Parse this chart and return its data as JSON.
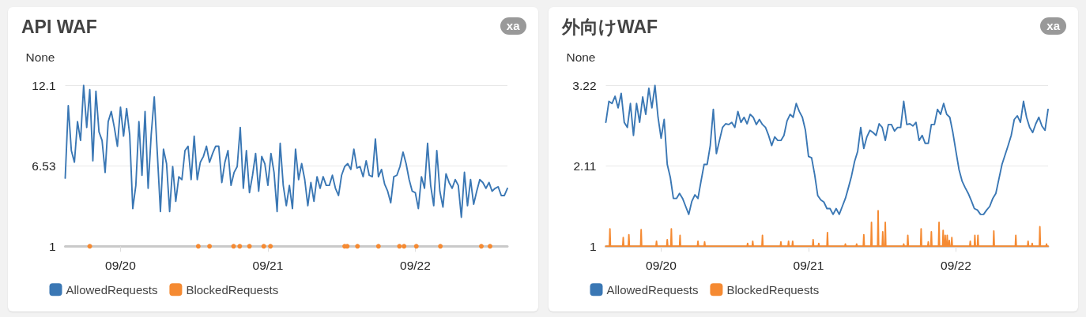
{
  "chart_data": [
    {
      "type": "line",
      "title": "API WAF",
      "ylabel": "None",
      "annotations": [
        "xa"
      ],
      "x": [
        "--09-19T15:00",
        "--09-19T15:30",
        "--09-19T16:00",
        "--09-19T16:30",
        "--09-19T17:00",
        "--09-19T17:30",
        "--09-19T18:00",
        "--09-19T18:30",
        "--09-19T19:00",
        "--09-19T19:30",
        "--09-19T20:00",
        "--09-19T20:30",
        "--09-19T21:00",
        "--09-19T21:30",
        "--09-19T22:00",
        "--09-19T22:30",
        "--09-19T23:00",
        "--09-19T23:30",
        "--09-20T00:00",
        "--09-20T00:30",
        "--09-20T01:00",
        "--09-20T01:30",
        "--09-20T02:00",
        "--09-20T02:30",
        "--09-20T03:00",
        "--09-20T03:30",
        "--09-20T04:00",
        "--09-20T04:30",
        "--09-20T05:00",
        "--09-20T05:30",
        "--09-20T06:00",
        "--09-20T06:30",
        "--09-20T07:00",
        "--09-20T07:30",
        "--09-20T08:00",
        "--09-20T08:30",
        "--09-20T09:00",
        "--09-20T09:30",
        "--09-20T10:00",
        "--09-20T10:30",
        "--09-20T11:00",
        "--09-20T11:30",
        "--09-20T12:00",
        "--09-20T12:30",
        "--09-20T13:00",
        "--09-20T13:30",
        "--09-20T14:00",
        "--09-20T14:30",
        "--09-20T15:00",
        "--09-20T15:30",
        "--09-20T16:00",
        "--09-20T16:30",
        "--09-20T17:00",
        "--09-20T17:30",
        "--09-20T18:00",
        "--09-20T18:30",
        "--09-20T19:00",
        "--09-20T19:30",
        "--09-20T20:00",
        "--09-20T20:30",
        "--09-20T21:00",
        "--09-20T21:30",
        "--09-20T22:00",
        "--09-20T22:30",
        "--09-20T23:00",
        "--09-20T23:30",
        "--09-21T00:00",
        "--09-21T00:30",
        "--09-21T01:00",
        "--09-21T01:30",
        "--09-21T02:00",
        "--09-21T02:30",
        "--09-21T03:00",
        "--09-21T03:30",
        "--09-21T04:00",
        "--09-21T04:30",
        "--09-21T05:00",
        "--09-21T05:30",
        "--09-21T06:00",
        "--09-21T06:30",
        "--09-21T07:00",
        "--09-21T07:30",
        "--09-21T08:00",
        "--09-21T08:30",
        "--09-21T09:00",
        "--09-21T09:30",
        "--09-21T10:00",
        "--09-21T10:30",
        "--09-21T11:00",
        "--09-21T11:30",
        "--09-21T12:00",
        "--09-21T12:30",
        "--09-21T13:00",
        "--09-21T13:30",
        "--09-21T14:00",
        "--09-21T14:30",
        "--09-21T15:00",
        "--09-21T15:30",
        "--09-21T16:00",
        "--09-21T16:30",
        "--09-21T17:00",
        "--09-21T17:30",
        "--09-21T18:00",
        "--09-21T18:30",
        "--09-21T19:00",
        "--09-21T19:30",
        "--09-21T20:00",
        "--09-21T20:30",
        "--09-21T21:00",
        "--09-21T21:30",
        "--09-21T22:00",
        "--09-21T22:30",
        "--09-21T23:00",
        "--09-21T23:30",
        "--09-22T00:00",
        "--09-22T00:30",
        "--09-22T01:00",
        "--09-22T01:30",
        "--09-22T02:00",
        "--09-22T02:30",
        "--09-22T03:00",
        "--09-22T03:30",
        "--09-22T04:00",
        "--09-22T04:30",
        "--09-22T05:00",
        "--09-22T05:30",
        "--09-22T06:00",
        "--09-22T06:30",
        "--09-22T07:00",
        "--09-22T07:30",
        "--09-22T08:00",
        "--09-22T08:30",
        "--09-22T09:00",
        "--09-22T09:30",
        "--09-22T10:00",
        "--09-22T10:30",
        "--09-22T11:00",
        "--09-22T11:30",
        "--09-22T12:00",
        "--09-22T12:30",
        "--09-22T13:00",
        "--09-22T13:30",
        "--09-22T14:00",
        "--09-22T14:30",
        "--09-22T15:00"
      ],
      "xlim": [
        "--09-19T15:00",
        "--09-22T15:00"
      ],
      "xticks": [
        {
          "value": "--09-20",
          "label": "09/20"
        },
        {
          "value": "--09-21",
          "label": "09/21"
        },
        {
          "value": "--09-22",
          "label": "09/22"
        }
      ],
      "ylim": [
        1,
        12.1
      ],
      "yticks": [
        1,
        6.53,
        12.1
      ],
      "grid": "y",
      "legend": "bottom left",
      "series": [
        {
          "name": "AllowedRequests",
          "color": "#3a77b4",
          "values": [
            5.7,
            10.7,
            7.6,
            6.8,
            9.6,
            8.3,
            12.1,
            9.2,
            11.8,
            6.9,
            11.7,
            8.9,
            8.3,
            6.1,
            9.6,
            10.3,
            9.2,
            7.9,
            10.6,
            8.6,
            10.5,
            8.7,
            3.6,
            5.2,
            9.6,
            5.9,
            10.3,
            5.0,
            8.7,
            11.3,
            7.4,
            3.4,
            7.7,
            6.7,
            3.4,
            6.5,
            4.1,
            5.8,
            5.6,
            7.6,
            7.9,
            5.6,
            8.6,
            5.6,
            6.8,
            7.2,
            7.9,
            6.8,
            7.4,
            7.9,
            7.9,
            5.4,
            6.8,
            7.6,
            5.2,
            6.1,
            6.5,
            9.2,
            5.0,
            7.6,
            4.7,
            5.9,
            7.4,
            4.8,
            7.2,
            6.7,
            5.2,
            7.4,
            6.1,
            3.4,
            8.1,
            5.2,
            3.8,
            5.2,
            3.6,
            7.7,
            5.6,
            6.7,
            5.6,
            3.8,
            5.4,
            4.1,
            5.8,
            5.0,
            5.8,
            5.2,
            5.2,
            5.9,
            5.0,
            4.5,
            5.9,
            6.5,
            6.7,
            6.3,
            7.7,
            6.4,
            6.5,
            5.8,
            6.9,
            5.9,
            5.8,
            8.4,
            5.8,
            6.3,
            5.3,
            4.8,
            4.0,
            5.8,
            5.9,
            6.5,
            7.5,
            6.7,
            5.6,
            4.8,
            4.7,
            3.6,
            5.8,
            5.0,
            8.1,
            5.2,
            3.8,
            7.6,
            4.8,
            3.7,
            6.0,
            5.4,
            5.0,
            5.6,
            5.2,
            3.0,
            6.1,
            3.8,
            5.6,
            3.9,
            4.8,
            5.6,
            5.4,
            5.0,
            5.4,
            4.8,
            5.0,
            5.1,
            4.5,
            4.5,
            5.0
          ]
        },
        {
          "name": "BlockedRequests",
          "type": "scatter",
          "marker": "circle",
          "color": "#f58a32",
          "x": [
            "--09-19T19:00",
            "--09-20T12:40",
            "--09-20T14:30",
            "--09-20T18:25",
            "--09-20T19:25",
            "--09-20T21:00",
            "--09-20T23:20",
            "--09-21T00:25",
            "--09-21T12:30",
            "--09-21T12:55",
            "--09-21T14:35",
            "--09-21T18:00",
            "--09-21T21:25",
            "--09-21T22:10",
            "--09-22T00:10",
            "--09-22T04:05",
            "--09-22T10:45",
            "--09-22T12:10"
          ],
          "values": [
            1,
            1,
            1,
            1,
            1,
            1,
            1,
            1,
            1,
            1,
            1,
            1,
            1,
            1,
            1,
            1,
            1,
            1
          ]
        }
      ]
    },
    {
      "type": "line",
      "title": "外向けWAF",
      "ylabel": "None",
      "annotations": [
        "xa"
      ],
      "x": [
        "--09-19T15:00",
        "--09-19T15:30",
        "--09-19T16:00",
        "--09-19T16:30",
        "--09-19T17:00",
        "--09-19T17:30",
        "--09-19T18:00",
        "--09-19T18:30",
        "--09-19T19:00",
        "--09-19T19:30",
        "--09-19T20:00",
        "--09-19T20:30",
        "--09-19T21:00",
        "--09-19T21:30",
        "--09-19T22:00",
        "--09-19T22:30",
        "--09-19T23:00",
        "--09-19T23:30",
        "--09-20T00:00",
        "--09-20T00:30",
        "--09-20T01:00",
        "--09-20T01:30",
        "--09-20T02:00",
        "--09-20T02:30",
        "--09-20T03:00",
        "--09-20T03:30",
        "--09-20T04:00",
        "--09-20T04:30",
        "--09-20T05:00",
        "--09-20T05:30",
        "--09-20T06:00",
        "--09-20T06:30",
        "--09-20T07:00",
        "--09-20T07:30",
        "--09-20T08:00",
        "--09-20T08:30",
        "--09-20T09:00",
        "--09-20T09:30",
        "--09-20T10:00",
        "--09-20T10:30",
        "--09-20T11:00",
        "--09-20T11:30",
        "--09-20T12:00",
        "--09-20T12:30",
        "--09-20T13:00",
        "--09-20T13:30",
        "--09-20T14:00",
        "--09-20T14:30",
        "--09-20T15:00",
        "--09-20T15:30",
        "--09-20T16:00",
        "--09-20T16:30",
        "--09-20T17:00",
        "--09-20T17:30",
        "--09-20T18:00",
        "--09-20T18:30",
        "--09-20T19:00",
        "--09-20T19:30",
        "--09-20T20:00",
        "--09-20T20:30",
        "--09-20T21:00",
        "--09-20T21:30",
        "--09-20T22:00",
        "--09-20T22:30",
        "--09-20T23:00",
        "--09-20T23:30",
        "--09-21T00:00",
        "--09-21T00:30",
        "--09-21T01:00",
        "--09-21T01:30",
        "--09-21T02:00",
        "--09-21T02:30",
        "--09-21T03:00",
        "--09-21T03:30",
        "--09-21T04:00",
        "--09-21T04:30",
        "--09-21T05:00",
        "--09-21T05:30",
        "--09-21T06:00",
        "--09-21T06:30",
        "--09-21T07:00",
        "--09-21T07:30",
        "--09-21T08:00",
        "--09-21T08:30",
        "--09-21T09:00",
        "--09-21T09:30",
        "--09-21T10:00",
        "--09-21T10:30",
        "--09-21T11:00",
        "--09-21T11:30",
        "--09-21T12:00",
        "--09-21T12:30",
        "--09-21T13:00",
        "--09-21T13:30",
        "--09-21T14:00",
        "--09-21T14:30",
        "--09-21T15:00",
        "--09-21T15:30",
        "--09-21T16:00",
        "--09-21T16:30",
        "--09-21T17:00",
        "--09-21T17:30",
        "--09-21T18:00",
        "--09-21T18:30",
        "--09-21T19:00",
        "--09-21T19:30",
        "--09-21T20:00",
        "--09-21T20:30",
        "--09-21T21:00",
        "--09-21T21:30",
        "--09-21T22:00",
        "--09-21T22:30",
        "--09-21T23:00",
        "--09-21T23:30",
        "--09-22T00:00",
        "--09-22T00:30",
        "--09-22T01:00",
        "--09-22T01:30",
        "--09-22T02:00",
        "--09-22T02:30",
        "--09-22T03:00",
        "--09-22T03:30",
        "--09-22T04:00",
        "--09-22T04:30",
        "--09-22T05:00",
        "--09-22T05:30",
        "--09-22T06:00",
        "--09-22T06:30",
        "--09-22T07:00",
        "--09-22T07:30",
        "--09-22T08:00",
        "--09-22T08:30",
        "--09-22T09:00",
        "--09-22T09:30",
        "--09-22T10:00",
        "--09-22T10:30",
        "--09-22T11:00",
        "--09-22T11:30",
        "--09-22T12:00",
        "--09-22T12:30",
        "--09-22T13:00",
        "--09-22T13:30",
        "--09-22T14:00",
        "--09-22T14:30",
        "--09-22T15:00"
      ],
      "xlim": [
        "--09-19T15:00",
        "--09-22T15:00"
      ],
      "xticks": [
        {
          "value": "--09-20",
          "label": "09/20"
        },
        {
          "value": "--09-21",
          "label": "09/21"
        },
        {
          "value": "--09-22",
          "label": "09/22"
        }
      ],
      "ylim": [
        1,
        3.22
      ],
      "yticks": [
        1,
        2.11,
        3.22
      ],
      "grid": "y",
      "legend": "bottom left",
      "series": [
        {
          "name": "AllowedRequests",
          "color": "#3a77b4",
          "values": [
            2.71,
            3.0,
            2.97,
            3.07,
            2.91,
            3.11,
            2.71,
            2.64,
            2.97,
            2.53,
            2.97,
            2.71,
            3.06,
            2.82,
            3.18,
            2.91,
            3.22,
            2.78,
            2.49,
            2.75,
            2.13,
            1.95,
            1.66,
            1.66,
            1.73,
            1.66,
            1.55,
            1.44,
            1.62,
            1.71,
            1.66,
            1.9,
            2.13,
            2.13,
            2.39,
            2.89,
            2.28,
            2.46,
            2.64,
            2.69,
            2.68,
            2.71,
            2.64,
            2.86,
            2.71,
            2.78,
            2.69,
            2.82,
            2.78,
            2.68,
            2.75,
            2.68,
            2.64,
            2.53,
            2.39,
            2.51,
            2.46,
            2.46,
            2.53,
            2.73,
            2.82,
            2.78,
            2.97,
            2.86,
            2.78,
            2.6,
            2.24,
            2.22,
            1.99,
            1.7,
            1.64,
            1.61,
            1.52,
            1.52,
            1.44,
            1.52,
            1.44,
            1.55,
            1.66,
            1.81,
            1.97,
            2.17,
            2.31,
            2.64,
            2.35,
            2.51,
            2.6,
            2.57,
            2.53,
            2.69,
            2.64,
            2.46,
            2.68,
            2.68,
            2.59,
            2.64,
            2.64,
            3.0,
            2.68,
            2.69,
            2.66,
            2.71,
            2.46,
            2.53,
            2.42,
            2.42,
            2.68,
            2.68,
            2.89,
            2.82,
            2.97,
            2.82,
            2.78,
            2.57,
            2.31,
            2.06,
            1.9,
            1.81,
            1.73,
            1.63,
            1.52,
            1.5,
            1.44,
            1.44,
            1.5,
            1.55,
            1.66,
            1.73,
            1.93,
            2.13,
            2.26,
            2.39,
            2.53,
            2.75,
            2.8,
            2.71,
            3.0,
            2.78,
            2.64,
            2.57,
            2.69,
            2.78,
            2.66,
            2.6,
            2.89
          ]
        },
        {
          "name": "BlockedRequests",
          "color": "#f58a32",
          "x": [
            "--09-19T15:00",
            "--09-19T15:35",
            "--09-19T15:40",
            "--09-19T15:45",
            "--09-19T17:45",
            "--09-19T17:50",
            "--09-19T17:55",
            "--09-19T18:40",
            "--09-19T18:45",
            "--09-19T18:50",
            "--09-19T20:40",
            "--09-19T20:45",
            "--09-19T20:50",
            "--09-19T23:10",
            "--09-19T23:15",
            "--09-19T23:20",
            "--09-20T00:55",
            "--09-20T01:00",
            "--09-20T01:05",
            "--09-20T01:35",
            "--09-20T01:40",
            "--09-20T01:45",
            "--09-20T03:00",
            "--09-20T03:05",
            "--09-20T03:10",
            "--09-20T05:55",
            "--09-20T06:00",
            "--09-20T06:05",
            "--09-20T07:00",
            "--09-20T07:05",
            "--09-20T07:10",
            "--09-20T14:00",
            "--09-20T14:05",
            "--09-20T14:10",
            "--09-20T14:50",
            "--09-20T14:55",
            "--09-20T15:00",
            "--09-20T16:25",
            "--09-20T16:30",
            "--09-20T16:35",
            "--09-20T19:25",
            "--09-20T19:30",
            "--09-20T19:35",
            "--09-20T20:40",
            "--09-20T20:45",
            "--09-20T20:50",
            "--09-20T21:20",
            "--09-20T21:25",
            "--09-20T21:30",
            "--09-21T00:40",
            "--09-21T00:45",
            "--09-21T00:50",
            "--09-21T01:35",
            "--09-21T01:40",
            "--09-21T01:45",
            "--09-21T03:00",
            "--09-21T03:05",
            "--09-21T03:10",
            "--09-21T05:55",
            "--09-21T06:00",
            "--09-21T06:05",
            "--09-21T07:45",
            "--09-21T07:50",
            "--09-21T07:55",
            "--09-21T08:55",
            "--09-21T09:00",
            "--09-21T09:05",
            "--09-21T10:10",
            "--09-21T10:15",
            "--09-21T10:20",
            "--09-21T11:15",
            "--09-21T11:20",
            "--09-21T11:25",
            "--09-21T12:00",
            "--09-21T12:05",
            "--09-21T12:10",
            "--09-21T12:25",
            "--09-21T12:30",
            "--09-21T12:35",
            "--09-21T15:25",
            "--09-21T15:30",
            "--09-21T15:35",
            "--09-21T16:05",
            "--09-21T16:10",
            "--09-21T16:15",
            "--09-21T18:15",
            "--09-21T18:20",
            "--09-21T18:25",
            "--09-21T19:25",
            "--09-21T19:30",
            "--09-21T19:35",
            "--09-21T19:55",
            "--09-21T20:00",
            "--09-21T20:05",
            "--09-21T21:10",
            "--09-21T21:15",
            "--09-21T21:20",
            "--09-21T21:50",
            "--09-21T21:55",
            "--09-21T22:00",
            "--09-21T22:10",
            "--09-21T22:15",
            "--09-21T22:20",
            "--09-21T22:30",
            "--09-21T22:35",
            "--09-21T22:40",
            "--09-21T22:50",
            "--09-21T22:55",
            "--09-21T23:00",
            "--09-21T23:15",
            "--09-21T23:20",
            "--09-21T23:25",
            "--09-22T02:15",
            "--09-22T02:20",
            "--09-22T02:25",
            "--09-22T03:00",
            "--09-22T03:05",
            "--09-22T03:10",
            "--09-22T03:30",
            "--09-22T03:35",
            "--09-22T03:40",
            "--09-22T06:05",
            "--09-22T06:10",
            "--09-22T06:15",
            "--09-22T09:40",
            "--09-22T09:45",
            "--09-22T09:50",
            "--09-22T11:40",
            "--09-22T11:45",
            "--09-22T11:50",
            "--09-22T12:20",
            "--09-22T12:25",
            "--09-22T12:30",
            "--09-22T13:35",
            "--09-22T13:40",
            "--09-22T13:45",
            "--09-22T14:40",
            "--09-22T14:45",
            "--09-22T14:50",
            "--09-22T15:00"
          ],
          "values": [
            1,
            1,
            1.24,
            1,
            1,
            1.12,
            1,
            1,
            1.16,
            1,
            1,
            1.23,
            1,
            1,
            1.07,
            1,
            1,
            1.09,
            1,
            1,
            1.24,
            1,
            1,
            1.15,
            1,
            1,
            1.07,
            1,
            1,
            1.06,
            1,
            1,
            1.04,
            1,
            1,
            1.07,
            1,
            1,
            1.15,
            1,
            1,
            1.06,
            1,
            1,
            1.07,
            1,
            1,
            1.07,
            1,
            1,
            1.09,
            1,
            1,
            1.04,
            1,
            1,
            1.19,
            1,
            1,
            1.03,
            1,
            1,
            1.03,
            1,
            1,
            1.16,
            1,
            1,
            1.33,
            1,
            1,
            1.49,
            1,
            1,
            1.2,
            1,
            1,
            1.33,
            1,
            1,
            1.03,
            1,
            1,
            1.15,
            1,
            1,
            1.24,
            1,
            1,
            1.06,
            1,
            1,
            1.2,
            1,
            1,
            1.33,
            1,
            1,
            1.22,
            1,
            1,
            1.15,
            1,
            1,
            1.15,
            1,
            1,
            1.08,
            1,
            1,
            1.12,
            1,
            1,
            1.07,
            1,
            1,
            1.15,
            1,
            1,
            1.15,
            1,
            1,
            1.21,
            1,
            1,
            1.15,
            1,
            1,
            1.07,
            1,
            1,
            1.04,
            1,
            1,
            1.27,
            1,
            1,
            1.03,
            1,
            1
          ]
        }
      ]
    }
  ]
}
